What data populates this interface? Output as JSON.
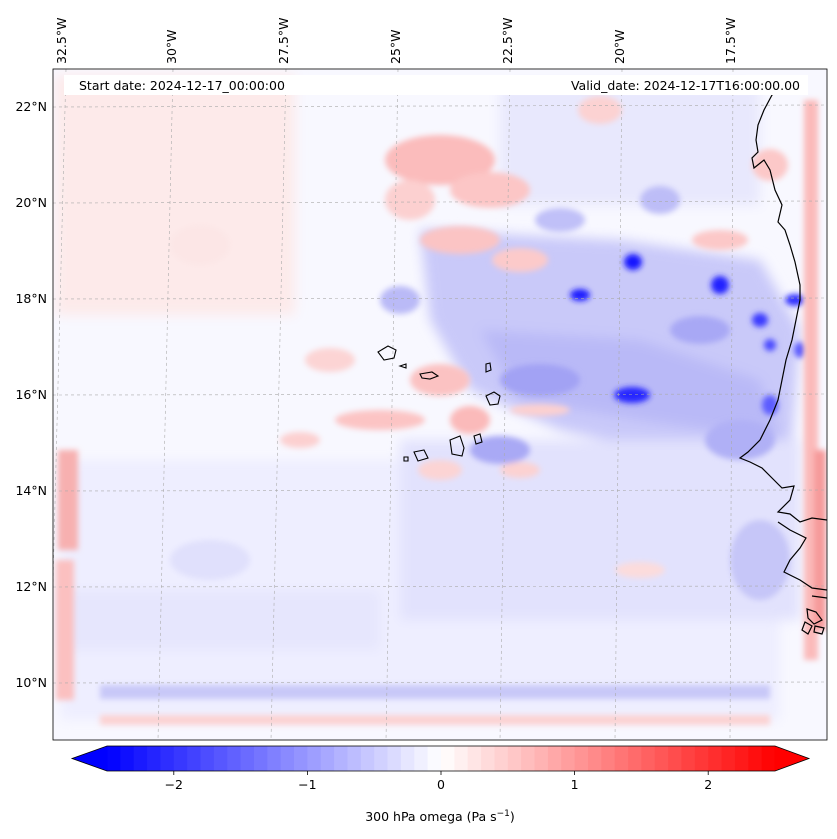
{
  "header": {
    "start_date": "Start date: 2024-12-17_00:00:00",
    "valid_date": "Valid_date: 2024-12-17T16:00:00.00"
  },
  "map": {
    "projection": "lambert-conformal",
    "longitude_ticks": [
      "32.5°W",
      "30°W",
      "27.5°W",
      "25°W",
      "22.5°W",
      "20°W",
      "17.5°W"
    ],
    "latitude_ticks": [
      "22°N",
      "20°N",
      "18°N",
      "16°N",
      "14°N",
      "12°N",
      "10°N"
    ],
    "features": [
      "Cape Verde islands",
      "West African coastline (Mauritania, Senegal, Gambia, Guinea-Bissau)"
    ]
  },
  "colorbar": {
    "label": "300 hPa omega (Pa s",
    "label_superscript": "−1",
    "label_close": ")",
    "ticks": [
      {
        "value": -2,
        "label": "−2"
      },
      {
        "value": -1,
        "label": "−1"
      },
      {
        "value": 0,
        "label": "0"
      },
      {
        "value": 1,
        "label": "1"
      },
      {
        "value": 2,
        "label": "2"
      }
    ],
    "range": [
      -2.5,
      2.5
    ],
    "colormap": "bwr",
    "colors": {
      "min": "#0000ff",
      "mid": "#ffffff",
      "max": "#ff0000"
    },
    "extend": "both"
  }
}
